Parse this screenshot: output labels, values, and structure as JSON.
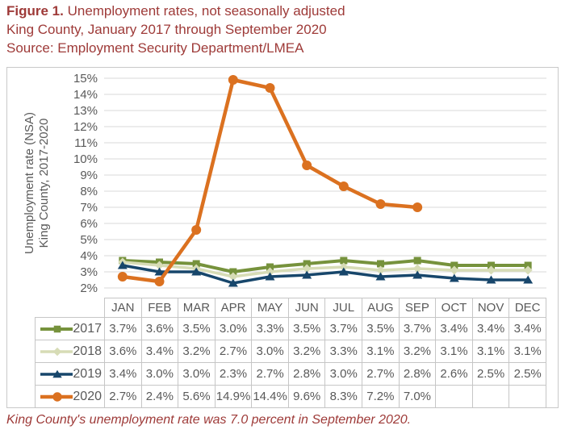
{
  "title": {
    "figure_label": "Figure 1.",
    "line1_rest": " Unemployment rates, not seasonally adjusted",
    "line2": "King County, January 2017 through September 2020",
    "line3": "Source: Employment Security Department/LMEA"
  },
  "note": "King County's unemployment rate was 7.0 percent in September 2020.",
  "colors": {
    "title_red": "#9E3A38",
    "note_red": "#9E3A38",
    "axis_text": "#595959",
    "table_text": "#595959",
    "gridline": "#D9D9D9",
    "table_border": "#C6C6C6",
    "figure_border": "#C9C9C9"
  },
  "chart_data": {
    "type": "line",
    "ylabel_lines": [
      "Unemployment rate (NSA)",
      "King County, 2017-2020"
    ],
    "categories": [
      "JAN",
      "FEB",
      "MAR",
      "APR",
      "MAY",
      "JUN",
      "JUL",
      "AUG",
      "SEP",
      "OCT",
      "NOV",
      "DEC"
    ],
    "ylim": [
      2,
      15
    ],
    "ytick_step": 1,
    "ytick_suffix": "%",
    "grid": true,
    "legend_position": "table-left",
    "value_suffix": "%",
    "series": [
      {
        "name": "2017",
        "color": "#76923C",
        "marker": "square",
        "line_width": 4,
        "values": [
          3.7,
          3.6,
          3.5,
          3.0,
          3.3,
          3.5,
          3.7,
          3.5,
          3.7,
          3.4,
          3.4,
          3.4
        ]
      },
      {
        "name": "2018",
        "color": "#D7DCB6",
        "marker": "diamond",
        "line_width": 3.5,
        "values": [
          3.6,
          3.4,
          3.2,
          2.7,
          3.0,
          3.2,
          3.3,
          3.1,
          3.2,
          3.1,
          3.1,
          3.1
        ]
      },
      {
        "name": "2019",
        "color": "#17466B",
        "marker": "triangle",
        "line_width": 3.5,
        "values": [
          3.4,
          3.0,
          3.0,
          2.3,
          2.7,
          2.8,
          3.0,
          2.7,
          2.8,
          2.6,
          2.5,
          2.5
        ]
      },
      {
        "name": "2020",
        "color": "#DB7120",
        "marker": "circle",
        "line_width": 4.5,
        "values": [
          2.7,
          2.4,
          5.6,
          14.9,
          14.4,
          9.6,
          8.3,
          7.2,
          7.0,
          null,
          null,
          null
        ]
      }
    ]
  }
}
